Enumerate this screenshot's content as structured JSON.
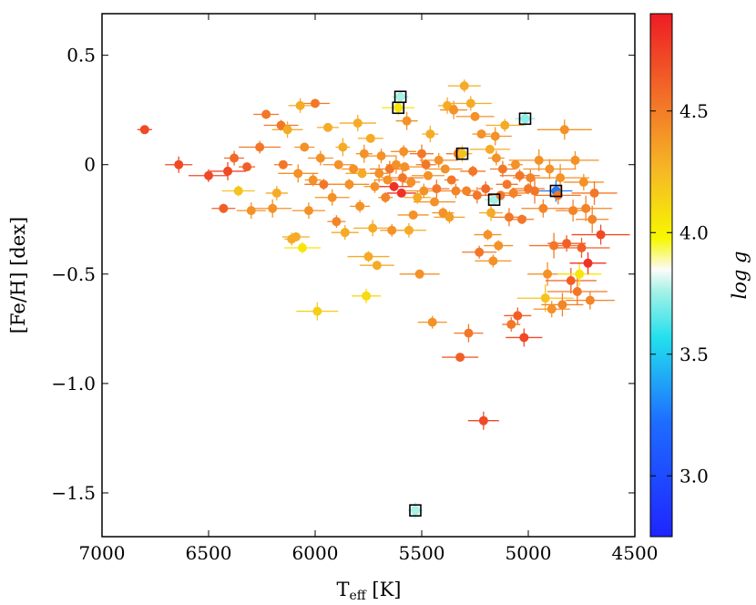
{
  "chart_data": {
    "type": "scatter",
    "title": "",
    "xlabel": "T",
    "xlabel_sub": "eff",
    "xlabel_unit": " [K]",
    "ylabel": "[Fe/H] [dex]",
    "xlim": [
      7000,
      4500
    ],
    "ylim": [
      -1.7,
      0.69
    ],
    "x_reversed": true,
    "x_ticks": [
      7000,
      6500,
      6000,
      5500,
      5000,
      4500
    ],
    "x_tick_labels": [
      "7000",
      "6500",
      "6000",
      "5500",
      "5000",
      "4500"
    ],
    "y_ticks": [
      0.5,
      0.0,
      -0.5,
      -1.0,
      -1.5
    ],
    "y_tick_labels": [
      "0.5",
      "0",
      "−0.5",
      "−1.0",
      "−1.5"
    ],
    "colorbar": {
      "label": "log g",
      "range": [
        2.75,
        4.9
      ],
      "ticks": [
        4.5,
        4.0,
        3.5,
        3.0
      ],
      "tick_labels": [
        "4.5",
        "4.0",
        "3.5",
        "3.0"
      ],
      "colormap": "jet-like blue-cyan-white-yellow-red"
    },
    "points": [
      {
        "teff": 6800,
        "feh": 0.16,
        "logg": 4.7
      },
      {
        "teff": 6640,
        "feh": 0.0,
        "logg": 4.7
      },
      {
        "teff": 6500,
        "feh": -0.05,
        "logg": 4.7
      },
      {
        "teff": 6430,
        "feh": -0.2,
        "logg": 4.6
      },
      {
        "teff": 6410,
        "feh": -0.03,
        "logg": 4.7
      },
      {
        "teff": 6380,
        "feh": 0.03,
        "logg": 4.55
      },
      {
        "teff": 6360,
        "feh": -0.12,
        "logg": 4.2
      },
      {
        "teff": 6320,
        "feh": -0.01,
        "logg": 4.6
      },
      {
        "teff": 6300,
        "feh": -0.21,
        "logg": 4.4
      },
      {
        "teff": 6260,
        "feh": 0.08,
        "logg": 4.5
      },
      {
        "teff": 6230,
        "feh": 0.23,
        "logg": 4.5
      },
      {
        "teff": 6200,
        "feh": -0.2,
        "logg": 4.4
      },
      {
        "teff": 6180,
        "feh": -0.13,
        "logg": 4.3
      },
      {
        "teff": 6160,
        "feh": 0.18,
        "logg": 4.5
      },
      {
        "teff": 6150,
        "feh": 0.0,
        "logg": 4.5
      },
      {
        "teff": 6130,
        "feh": 0.16,
        "logg": 4.3
      },
      {
        "teff": 6110,
        "feh": -0.34,
        "logg": 4.3
      },
      {
        "teff": 6090,
        "feh": -0.33,
        "logg": 4.3
      },
      {
        "teff": 6080,
        "feh": -0.04,
        "logg": 4.4
      },
      {
        "teff": 6070,
        "feh": 0.27,
        "logg": 4.3
      },
      {
        "teff": 6060,
        "feh": -0.38,
        "logg": 4.05
      },
      {
        "teff": 6050,
        "feh": 0.08,
        "logg": 4.4
      },
      {
        "teff": 6030,
        "feh": -0.21,
        "logg": 4.4
      },
      {
        "teff": 6010,
        "feh": -0.07,
        "logg": 4.4
      },
      {
        "teff": 6000,
        "feh": 0.28,
        "logg": 4.5
      },
      {
        "teff": 5990,
        "feh": -0.67,
        "logg": 4.15
      },
      {
        "teff": 5975,
        "feh": 0.03,
        "logg": 4.4
      },
      {
        "teff": 5960,
        "feh": -0.09,
        "logg": 4.5
      },
      {
        "teff": 5940,
        "feh": 0.17,
        "logg": 4.3
      },
      {
        "teff": 5920,
        "feh": -0.15,
        "logg": 4.4
      },
      {
        "teff": 5900,
        "feh": -0.26,
        "logg": 4.45
      },
      {
        "teff": 5890,
        "feh": 0.0,
        "logg": 4.4
      },
      {
        "teff": 5870,
        "feh": 0.08,
        "logg": 4.3
      },
      {
        "teff": 5860,
        "feh": -0.31,
        "logg": 4.3
      },
      {
        "teff": 5840,
        "feh": -0.09,
        "logg": 4.4
      },
      {
        "teff": 5820,
        "feh": -0.02,
        "logg": 4.4
      },
      {
        "teff": 5800,
        "feh": 0.19,
        "logg": 4.3
      },
      {
        "teff": 5790,
        "feh": -0.19,
        "logg": 4.4
      },
      {
        "teff": 5780,
        "feh": -0.04,
        "logg": 4.3
      },
      {
        "teff": 5770,
        "feh": 0.05,
        "logg": 4.4
      },
      {
        "teff": 5760,
        "feh": -0.6,
        "logg": 4.1
      },
      {
        "teff": 5750,
        "feh": -0.42,
        "logg": 4.3
      },
      {
        "teff": 5740,
        "feh": 0.12,
        "logg": 4.3
      },
      {
        "teff": 5730,
        "feh": -0.29,
        "logg": 4.3
      },
      {
        "teff": 5720,
        "feh": -0.1,
        "logg": 4.4
      },
      {
        "teff": 5710,
        "feh": -0.46,
        "logg": 4.3
      },
      {
        "teff": 5700,
        "feh": -0.04,
        "logg": 4.4
      },
      {
        "teff": 5690,
        "feh": 0.04,
        "logg": 4.4
      },
      {
        "teff": 5670,
        "feh": -0.15,
        "logg": 4.45
      },
      {
        "teff": 5660,
        "feh": -0.07,
        "logg": 4.4
      },
      {
        "teff": 5650,
        "feh": -0.02,
        "logg": 4.5
      },
      {
        "teff": 5640,
        "feh": -0.3,
        "logg": 4.4
      },
      {
        "teff": 5630,
        "feh": -0.1,
        "logg": 4.8
      },
      {
        "teff": 5620,
        "feh": 0.0,
        "logg": 4.4
      },
      {
        "teff": 5610,
        "feh": 0.26,
        "logg": 4.05
      },
      {
        "teff": 5600,
        "feh": 0.31,
        "logg": 3.75
      },
      {
        "teff": 5595,
        "feh": -0.13,
        "logg": 4.8
      },
      {
        "teff": 5590,
        "feh": -0.06,
        "logg": 4.5
      },
      {
        "teff": 5585,
        "feh": 0.06,
        "logg": 4.4
      },
      {
        "teff": 5580,
        "feh": -0.01,
        "logg": 4.4
      },
      {
        "teff": 5570,
        "feh": 0.2,
        "logg": 4.4
      },
      {
        "teff": 5560,
        "feh": -0.3,
        "logg": 4.3
      },
      {
        "teff": 5550,
        "feh": -0.08,
        "logg": 4.4
      },
      {
        "teff": 5540,
        "feh": -0.23,
        "logg": 4.4
      },
      {
        "teff": 5530,
        "feh": -1.58,
        "logg": 3.75
      },
      {
        "teff": 5520,
        "feh": -0.15,
        "logg": 4.3
      },
      {
        "teff": 5510,
        "feh": -0.5,
        "logg": 4.4
      },
      {
        "teff": 5500,
        "feh": 0.05,
        "logg": 4.5
      },
      {
        "teff": 5490,
        "feh": -0.12,
        "logg": 4.4
      },
      {
        "teff": 5480,
        "feh": 0.0,
        "logg": 4.5
      },
      {
        "teff": 5470,
        "feh": -0.05,
        "logg": 4.4
      },
      {
        "teff": 5460,
        "feh": 0.14,
        "logg": 4.3
      },
      {
        "teff": 5450,
        "feh": -0.72,
        "logg": 4.4
      },
      {
        "teff": 5440,
        "feh": -0.17,
        "logg": 4.4
      },
      {
        "teff": 5430,
        "feh": -0.11,
        "logg": 4.5
      },
      {
        "teff": 5420,
        "feh": 0.02,
        "logg": 4.4
      },
      {
        "teff": 5400,
        "feh": -0.22,
        "logg": 4.4
      },
      {
        "teff": 5390,
        "feh": -0.02,
        "logg": 4.4
      },
      {
        "teff": 5380,
        "feh": 0.27,
        "logg": 4.3
      },
      {
        "teff": 5370,
        "feh": -0.24,
        "logg": 4.35
      },
      {
        "teff": 5360,
        "feh": -0.07,
        "logg": 4.5
      },
      {
        "teff": 5350,
        "feh": 0.25,
        "logg": 4.4
      },
      {
        "teff": 5340,
        "feh": -0.12,
        "logg": 4.45
      },
      {
        "teff": 5330,
        "feh": 0.05,
        "logg": 4.5
      },
      {
        "teff": 5320,
        "feh": -0.88,
        "logg": 4.6
      },
      {
        "teff": 5310,
        "feh": 0.05,
        "logg": 4.2
      },
      {
        "teff": 5300,
        "feh": 0.36,
        "logg": 4.3
      },
      {
        "teff": 5290,
        "feh": -0.12,
        "logg": 4.45
      },
      {
        "teff": 5280,
        "feh": -0.77,
        "logg": 4.5
      },
      {
        "teff": 5270,
        "feh": 0.28,
        "logg": 4.3
      },
      {
        "teff": 5260,
        "feh": -0.03,
        "logg": 4.5
      },
      {
        "teff": 5250,
        "feh": 0.22,
        "logg": 4.4
      },
      {
        "teff": 5240,
        "feh": -0.14,
        "logg": 4.5
      },
      {
        "teff": 5230,
        "feh": -0.4,
        "logg": 4.5
      },
      {
        "teff": 5220,
        "feh": 0.14,
        "logg": 4.4
      },
      {
        "teff": 5210,
        "feh": -1.17,
        "logg": 4.7
      },
      {
        "teff": 5200,
        "feh": -0.11,
        "logg": 4.55
      },
      {
        "teff": 5190,
        "feh": -0.32,
        "logg": 4.4
      },
      {
        "teff": 5180,
        "feh": 0.07,
        "logg": 4.3
      },
      {
        "teff": 5175,
        "feh": -0.22,
        "logg": 4.3
      },
      {
        "teff": 5165,
        "feh": -0.44,
        "logg": 4.4
      },
      {
        "teff": 5160,
        "feh": -0.16,
        "logg": 3.75
      },
      {
        "teff": 5155,
        "feh": 0.13,
        "logg": 4.4
      },
      {
        "teff": 5150,
        "feh": 0.03,
        "logg": 4.4
      },
      {
        "teff": 5140,
        "feh": -0.37,
        "logg": 4.4
      },
      {
        "teff": 5130,
        "feh": -0.14,
        "logg": 4.5
      },
      {
        "teff": 5120,
        "feh": -0.02,
        "logg": 4.5
      },
      {
        "teff": 5110,
        "feh": 0.18,
        "logg": 4.3
      },
      {
        "teff": 5100,
        "feh": -0.09,
        "logg": 4.5
      },
      {
        "teff": 5090,
        "feh": -0.24,
        "logg": 4.5
      },
      {
        "teff": 5080,
        "feh": -0.73,
        "logg": 4.5
      },
      {
        "teff": 5070,
        "feh": -0.13,
        "logg": 4.45
      },
      {
        "teff": 5060,
        "feh": 0.0,
        "logg": 4.4
      },
      {
        "teff": 5050,
        "feh": -0.69,
        "logg": 4.6
      },
      {
        "teff": 5040,
        "feh": -0.05,
        "logg": 4.5
      },
      {
        "teff": 5030,
        "feh": -0.25,
        "logg": 4.5
      },
      {
        "teff": 5020,
        "feh": -0.79,
        "logg": 4.7
      },
      {
        "teff": 5015,
        "feh": 0.21,
        "logg": 3.7
      },
      {
        "teff": 5000,
        "feh": -0.11,
        "logg": 4.5
      },
      {
        "teff": 4990,
        "feh": -0.06,
        "logg": 4.45
      },
      {
        "teff": 4970,
        "feh": -0.12,
        "logg": 4.5
      },
      {
        "teff": 4950,
        "feh": 0.02,
        "logg": 4.4
      },
      {
        "teff": 4930,
        "feh": -0.2,
        "logg": 4.45
      },
      {
        "teff": 4920,
        "feh": -0.61,
        "logg": 4.2
      },
      {
        "teff": 4910,
        "feh": -0.5,
        "logg": 4.4
      },
      {
        "teff": 4900,
        "feh": -0.02,
        "logg": 4.4
      },
      {
        "teff": 4890,
        "feh": -0.66,
        "logg": 4.4
      },
      {
        "teff": 4880,
        "feh": -0.37,
        "logg": 4.5
      },
      {
        "teff": 4870,
        "feh": -0.12,
        "logg": 3.2
      },
      {
        "teff": 4860,
        "feh": -0.14,
        "logg": 4.5
      },
      {
        "teff": 4850,
        "feh": -0.06,
        "logg": 4.4
      },
      {
        "teff": 4840,
        "feh": -0.64,
        "logg": 4.45
      },
      {
        "teff": 4830,
        "feh": 0.16,
        "logg": 4.4
      },
      {
        "teff": 4820,
        "feh": -0.36,
        "logg": 4.6
      },
      {
        "teff": 4800,
        "feh": -0.53,
        "logg": 4.6
      },
      {
        "teff": 4790,
        "feh": -0.21,
        "logg": 4.45
      },
      {
        "teff": 4780,
        "feh": 0.02,
        "logg": 4.4
      },
      {
        "teff": 4770,
        "feh": -0.58,
        "logg": 4.5
      },
      {
        "teff": 4760,
        "feh": -0.5,
        "logg": 4.05
      },
      {
        "teff": 4750,
        "feh": -0.38,
        "logg": 4.6
      },
      {
        "teff": 4740,
        "feh": -0.08,
        "logg": 4.4
      },
      {
        "teff": 4730,
        "feh": -0.2,
        "logg": 4.45
      },
      {
        "teff": 4720,
        "feh": -0.45,
        "logg": 4.8
      },
      {
        "teff": 4710,
        "feh": -0.62,
        "logg": 4.45
      },
      {
        "teff": 4700,
        "feh": -0.25,
        "logg": 4.45
      },
      {
        "teff": 4690,
        "feh": -0.13,
        "logg": 4.5
      },
      {
        "teff": 4660,
        "feh": -0.32,
        "logg": 4.7
      }
    ],
    "highlighted": [
      {
        "teff": 5600,
        "feh": 0.31
      },
      {
        "teff": 5610,
        "feh": 0.26
      },
      {
        "teff": 5310,
        "feh": 0.05
      },
      {
        "teff": 5015,
        "feh": 0.21
      },
      {
        "teff": 5160,
        "feh": -0.16
      },
      {
        "teff": 4870,
        "feh": -0.12
      },
      {
        "teff": 5530,
        "feh": -1.58
      }
    ]
  }
}
